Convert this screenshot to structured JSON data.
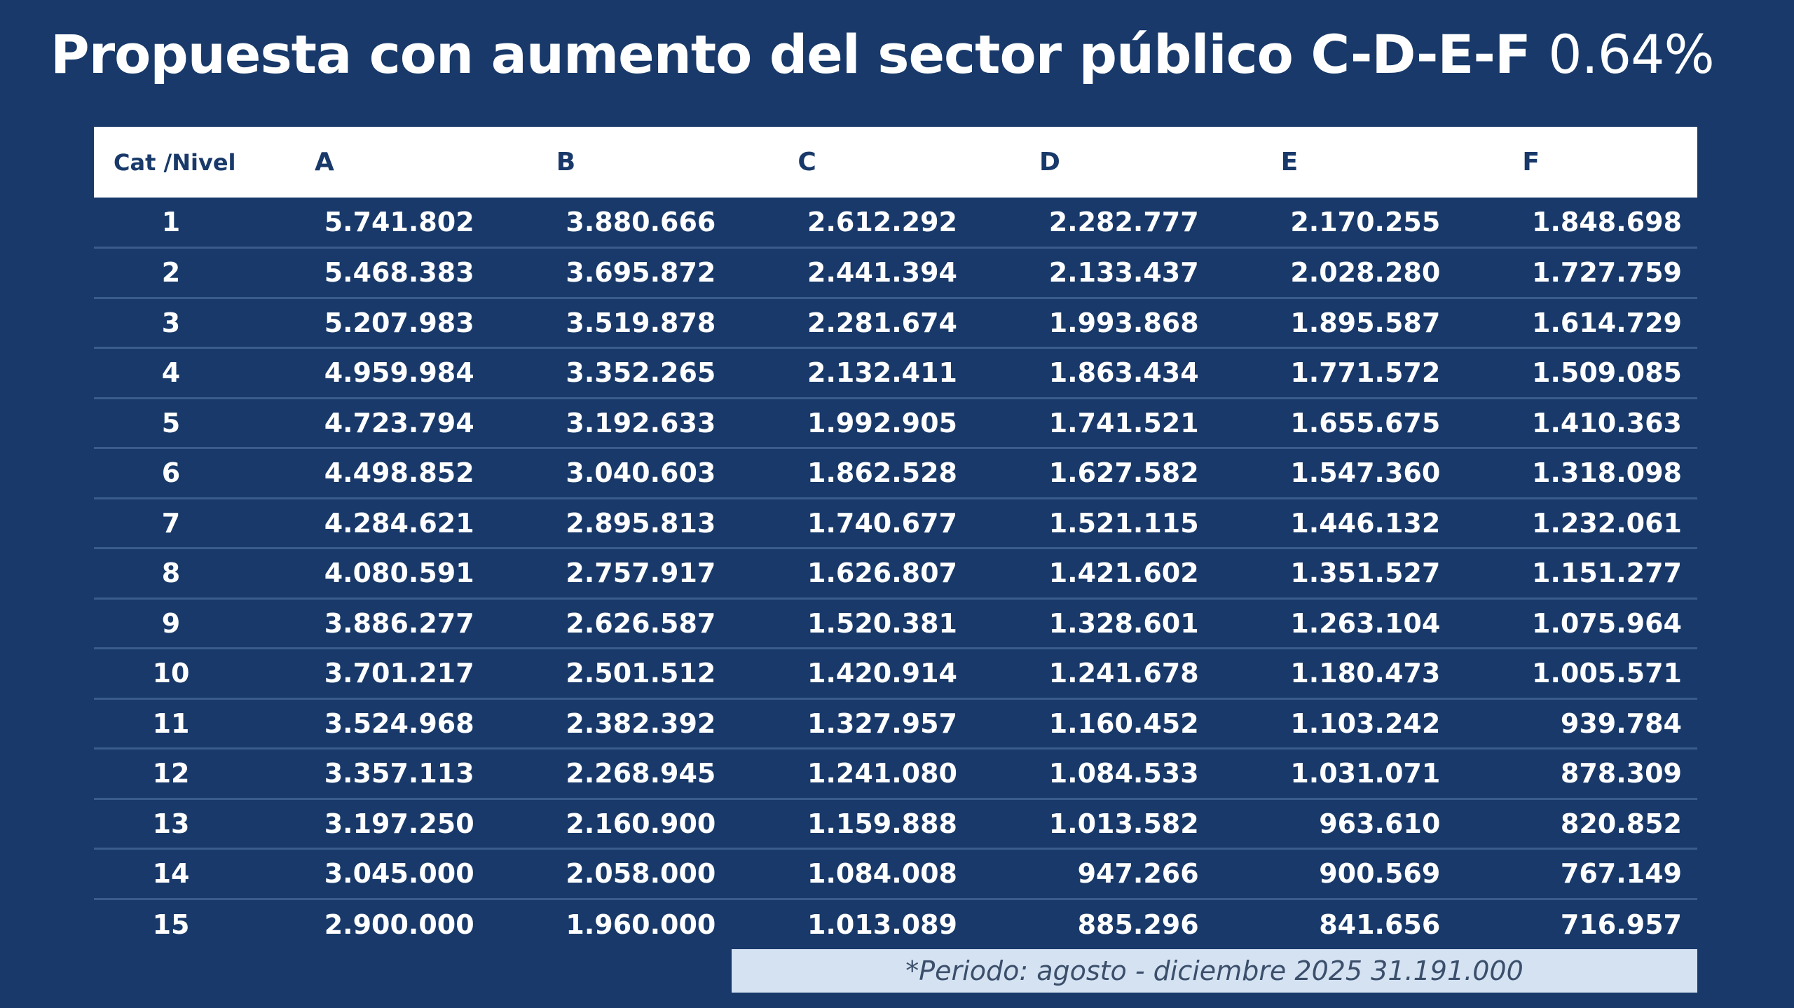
{
  "title": {
    "main": "Propuesta con aumento del sector público C-D-E-F",
    "percentage": "0.64%"
  },
  "table": {
    "headers": [
      "Cat /Nivel",
      "A",
      "B",
      "C",
      "D",
      "E",
      "F"
    ],
    "rows": [
      [
        "1",
        "5.741.802",
        "3.880.666",
        "2.612.292",
        "2.282.777",
        "2.170.255",
        "1.848.698"
      ],
      [
        "2",
        "5.468.383",
        "3.695.872",
        "2.441.394",
        "2.133.437",
        "2.028.280",
        "1.727.759"
      ],
      [
        "3",
        "5.207.983",
        "3.519.878",
        "2.281.674",
        "1.993.868",
        "1.895.587",
        "1.614.729"
      ],
      [
        "4",
        "4.959.984",
        "3.352.265",
        "2.132.411",
        "1.863.434",
        "1.771.572",
        "1.509.085"
      ],
      [
        "5",
        "4.723.794",
        "3.192.633",
        "1.992.905",
        "1.741.521",
        "1.655.675",
        "1.410.363"
      ],
      [
        "6",
        "4.498.852",
        "3.040.603",
        "1.862.528",
        "1.627.582",
        "1.547.360",
        "1.318.098"
      ],
      [
        "7",
        "4.284.621",
        "2.895.813",
        "1.740.677",
        "1.521.115",
        "1.446.132",
        "1.232.061"
      ],
      [
        "8",
        "4.080.591",
        "2.757.917",
        "1.626.807",
        "1.421.602",
        "1.351.527",
        "1.151.277"
      ],
      [
        "9",
        "3.886.277",
        "2.626.587",
        "1.520.381",
        "1.328.601",
        "1.263.104",
        "1.075.964"
      ],
      [
        "10",
        "3.701.217",
        "2.501.512",
        "1.420.914",
        "1.241.678",
        "1.180.473",
        "1.005.571"
      ],
      [
        "11",
        "3.524.968",
        "2.382.392",
        "1.327.957",
        "1.160.452",
        "1.103.242",
        "939.784"
      ],
      [
        "12",
        "3.357.113",
        "2.268.945",
        "1.241.080",
        "1.084.533",
        "1.031.071",
        "878.309"
      ],
      [
        "13",
        "3.197.250",
        "2.160.900",
        "1.159.888",
        "1.013.582",
        "963.610",
        "820.852"
      ],
      [
        "14",
        "3.045.000",
        "2.058.000",
        "1.084.008",
        "947.266",
        "900.569",
        "767.149"
      ],
      [
        "15",
        "2.900.000",
        "1.960.000",
        "1.013.089",
        "885.296",
        "841.656",
        "716.957"
      ]
    ]
  },
  "footnote": "*Periodo: agosto - diciembre 2025 31.191.000",
  "colors": {
    "background": "#18396a",
    "header_background": "#ffffff",
    "header_text": "#18396a",
    "row_divider": "#3a5c8c",
    "footnote_background": "#d4e2f2",
    "footnote_text": "#3b4f6b"
  }
}
